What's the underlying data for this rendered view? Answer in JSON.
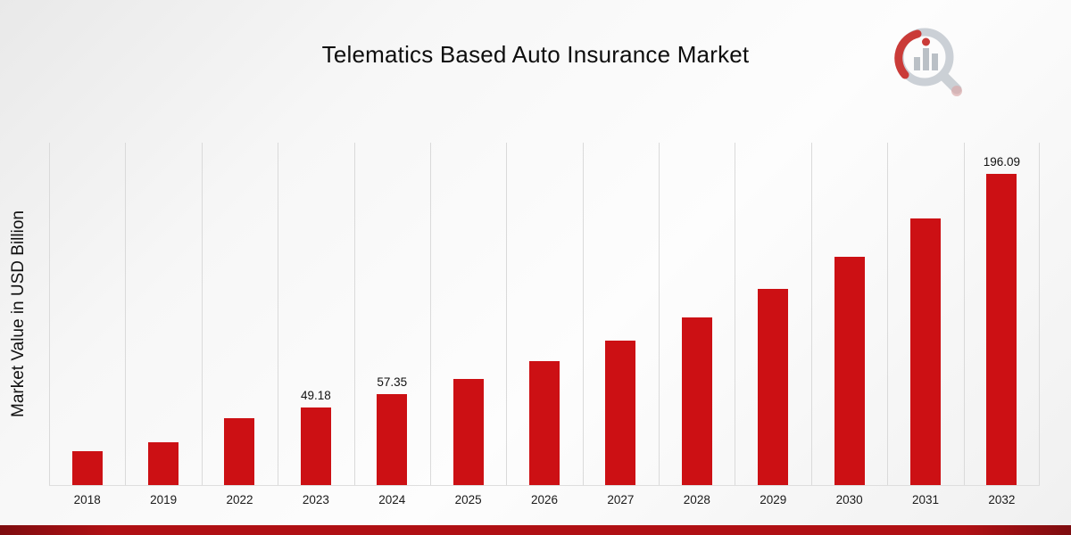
{
  "page": {
    "title": "Telematics Based Auto Insurance Market"
  },
  "icons": {
    "logo": "bar-chart-magnifier-logo"
  },
  "chart_data": {
    "type": "bar",
    "title": "Telematics Based Auto Insurance Market",
    "xlabel": "",
    "ylabel": "Market Value in USD Billion",
    "categories": [
      "2018",
      "2019",
      "2022",
      "2023",
      "2024",
      "2025",
      "2026",
      "2027",
      "2028",
      "2029",
      "2030",
      "2031",
      "2032"
    ],
    "values": [
      21.5,
      27.0,
      42.2,
      49.18,
      57.35,
      66.9,
      78.0,
      90.9,
      106.0,
      123.6,
      144.2,
      168.1,
      196.09
    ],
    "data_labels": {
      "2023": "49.18",
      "2024": "57.35",
      "2032": "196.09"
    },
    "ylim": [
      0,
      216
    ],
    "grid": "vertical-only",
    "legend": "none",
    "bar_color": "#cc1014",
    "gridline_color": "#dadada",
    "footer_bar_color": "#b01014"
  }
}
